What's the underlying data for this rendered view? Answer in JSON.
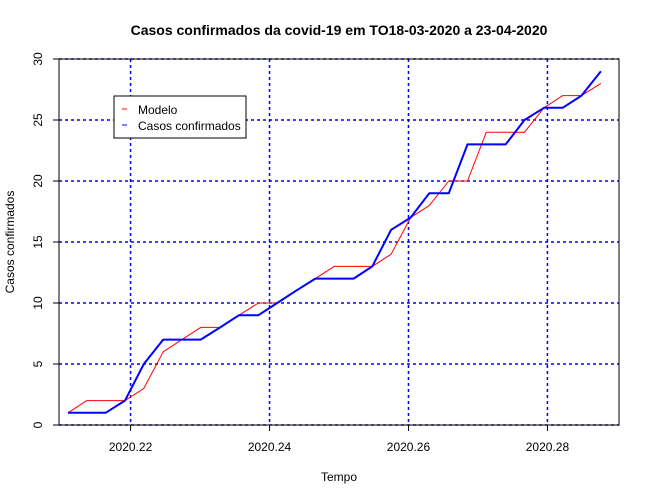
{
  "chart_data": {
    "type": "line",
    "title": "Casos confirmados da covid-19 em TO18-03-2020 a 23-04-2020",
    "xlabel": "Tempo",
    "ylabel": "Casos confirmados",
    "xlim": [
      2020.2097,
      2020.2903
    ],
    "ylim": [
      0,
      30
    ],
    "x_ticks": [
      2020.22,
      2020.24,
      2020.26,
      2020.28
    ],
    "x_tick_labels": [
      "2020.22",
      "2020.24",
      "2020.26",
      "2020.28"
    ],
    "y_ticks": [
      0,
      5,
      10,
      15,
      20,
      25,
      30
    ],
    "y_tick_labels": [
      "0",
      "5",
      "10",
      "15",
      "20",
      "25",
      "30"
    ],
    "grid": true,
    "legend_position": "top-left",
    "colors": {
      "model": "#ff0000",
      "confirmed": "#0000ff",
      "grid": "#0000ff"
    },
    "x": [
      2020.211,
      2020.2137,
      2020.2164,
      2020.2192,
      2020.2219,
      2020.2247,
      2020.2274,
      2020.2301,
      2020.2329,
      2020.2356,
      2020.2384,
      2020.2411,
      2020.2438,
      2020.2466,
      2020.2493,
      2020.2521,
      2020.2548,
      2020.2575,
      2020.2603,
      2020.263,
      2020.2658,
      2020.2685,
      2020.2712,
      2020.274,
      2020.2767,
      2020.2795,
      2020.2822,
      2020.2849,
      2020.2877
    ],
    "series": [
      {
        "name": "Modelo",
        "values": [
          1,
          2,
          2,
          2,
          3,
          6,
          7,
          8,
          8,
          9,
          10,
          10,
          11,
          12,
          13,
          13,
          13,
          14,
          17,
          18,
          20,
          20,
          24,
          24,
          24,
          26,
          27,
          27,
          28
        ]
      },
      {
        "name": "Casos confirmados",
        "values": [
          1,
          1,
          1,
          2,
          5,
          7,
          7,
          7,
          8,
          9,
          9,
          10,
          11,
          12,
          12,
          12,
          13,
          16,
          17,
          19,
          19,
          23,
          23,
          23,
          25,
          26,
          26,
          27,
          29
        ]
      }
    ]
  }
}
